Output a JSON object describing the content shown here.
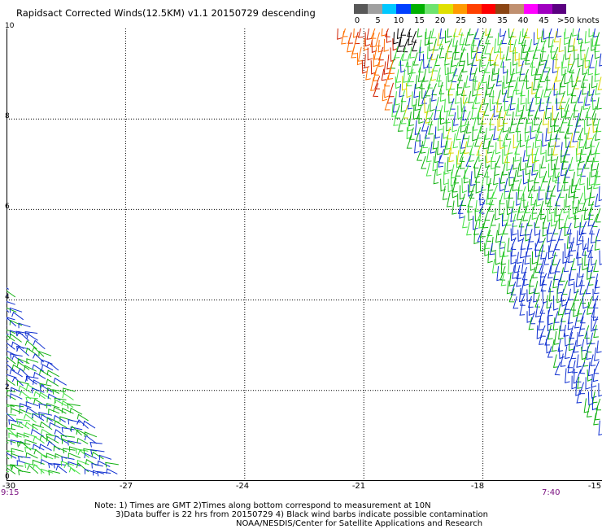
{
  "title": "Rapidsact Corrected Winds(12.5KM) v1.1 20150729 descending",
  "legend": {
    "colors": [
      "#585858",
      "#a0a0a0",
      "#00c8ff",
      "#0040ff",
      "#00b000",
      "#6ee36e",
      "#e0e000",
      "#ff9a00",
      "#ff4000",
      "#ff0000",
      "#8b4513",
      "#c09070",
      "#ff00ff",
      "#a000c0",
      "#5a0080"
    ],
    "labels": [
      "0",
      "5",
      "10",
      "15",
      "20",
      "25",
      "30",
      "35",
      "40",
      "45"
    ],
    "unit_label": ">50 knots"
  },
  "axes": {
    "lat_ticks": [
      "10",
      "8",
      "6",
      "4",
      "2",
      "0"
    ],
    "lon_ticks": [
      "-30",
      "-27",
      "-24",
      "-21",
      "-18",
      "-15"
    ],
    "lat_range": [
      0,
      10
    ],
    "lon_range": [
      -30,
      -15
    ]
  },
  "times": {
    "left": "9:15",
    "right": "7:40"
  },
  "note": {
    "line1": "Note: 1) Times are GMT 2)Times along bottom correspond to measurement at 10N",
    "line2": "3)Data buffer is 22 hrs from 20150729 4) Black wind barbs indicate possible contamination",
    "line3": "NOAA/NESDIS/Center for Satellite Applications and Research"
  },
  "wind_colors": {
    "blue": "#1030d0",
    "green": "#10b010",
    "lightgreen": "#40e040",
    "yellow": "#d8d800",
    "orange": "#ff7000",
    "red": "#d02000",
    "black": "#000000"
  }
}
